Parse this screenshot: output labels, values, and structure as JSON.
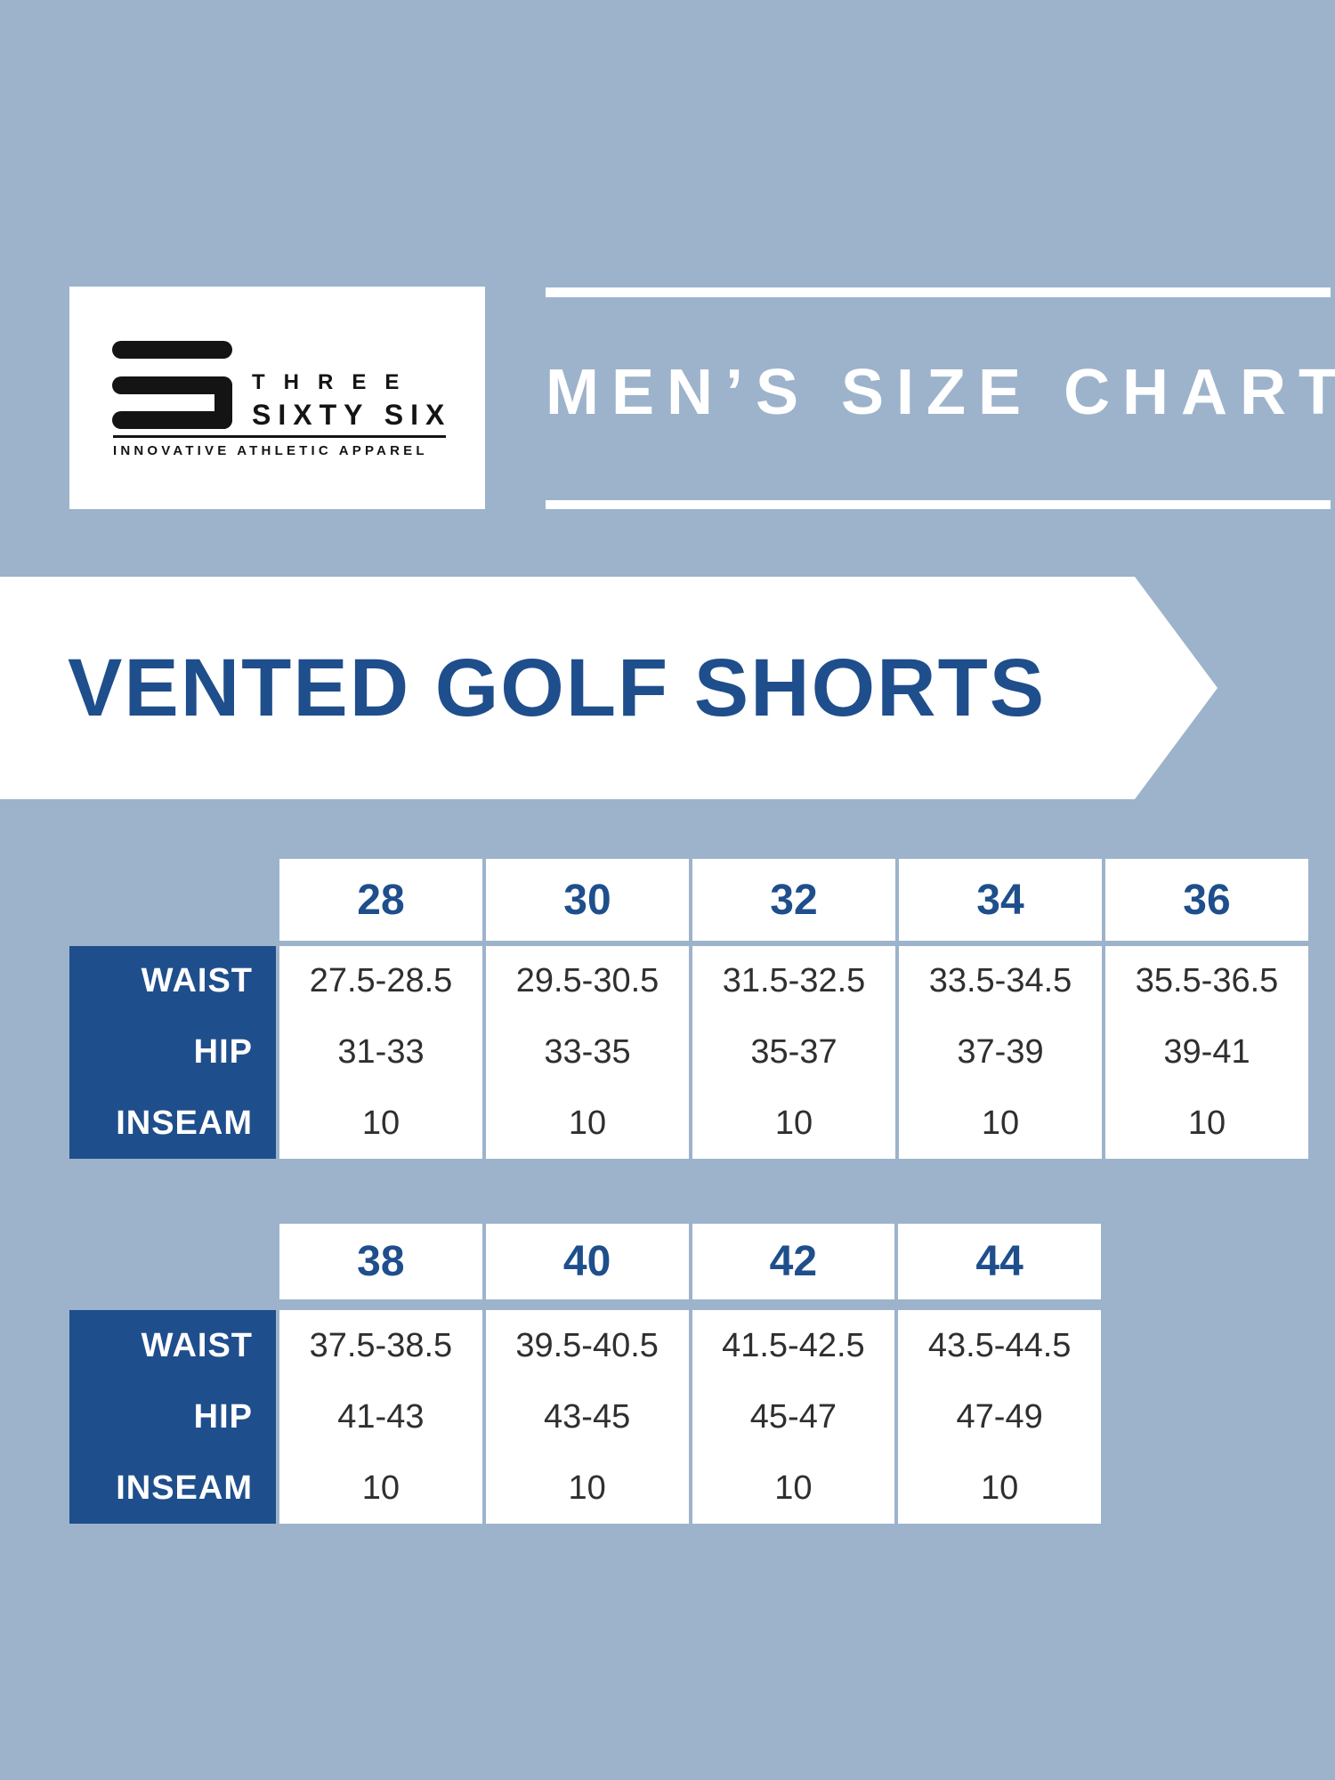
{
  "canvas": {
    "background_color": "#9db3cb",
    "accent_blue": "#1f4e8c",
    "value_text_color": "#2f2f2f",
    "panel_color": "#ffffff"
  },
  "logo": {
    "brand_line1": "THREE",
    "brand_line2": "SIXTY SIX",
    "tagline": "INNOVATIVE ATHLETIC APPAREL"
  },
  "header": {
    "title": "MEN’S SIZE CHART"
  },
  "banner": {
    "title": "VENTED GOLF SHORTS"
  },
  "chart_data": [
    {
      "type": "table",
      "column_headers": [
        "28",
        "30",
        "32",
        "34",
        "36"
      ],
      "rows": [
        {
          "label": "WAIST",
          "values": [
            "27.5-28.5",
            "29.5-30.5",
            "31.5-32.5",
            "33.5-34.5",
            "35.5-36.5"
          ]
        },
        {
          "label": "HIP",
          "values": [
            "31-33",
            "33-35",
            "35-37",
            "37-39",
            "39-41"
          ]
        },
        {
          "label": "INSEAM",
          "values": [
            "10",
            "10",
            "10",
            "10",
            "10"
          ]
        }
      ]
    },
    {
      "type": "table",
      "column_headers": [
        "38",
        "40",
        "42",
        "44"
      ],
      "rows": [
        {
          "label": "WAIST",
          "values": [
            "37.5-38.5",
            "39.5-40.5",
            "41.5-42.5",
            "43.5-44.5"
          ]
        },
        {
          "label": "HIP",
          "values": [
            "41-43",
            "43-45",
            "45-47",
            "47-49"
          ]
        },
        {
          "label": "INSEAM",
          "values": [
            "10",
            "10",
            "10",
            "10"
          ]
        }
      ]
    }
  ]
}
